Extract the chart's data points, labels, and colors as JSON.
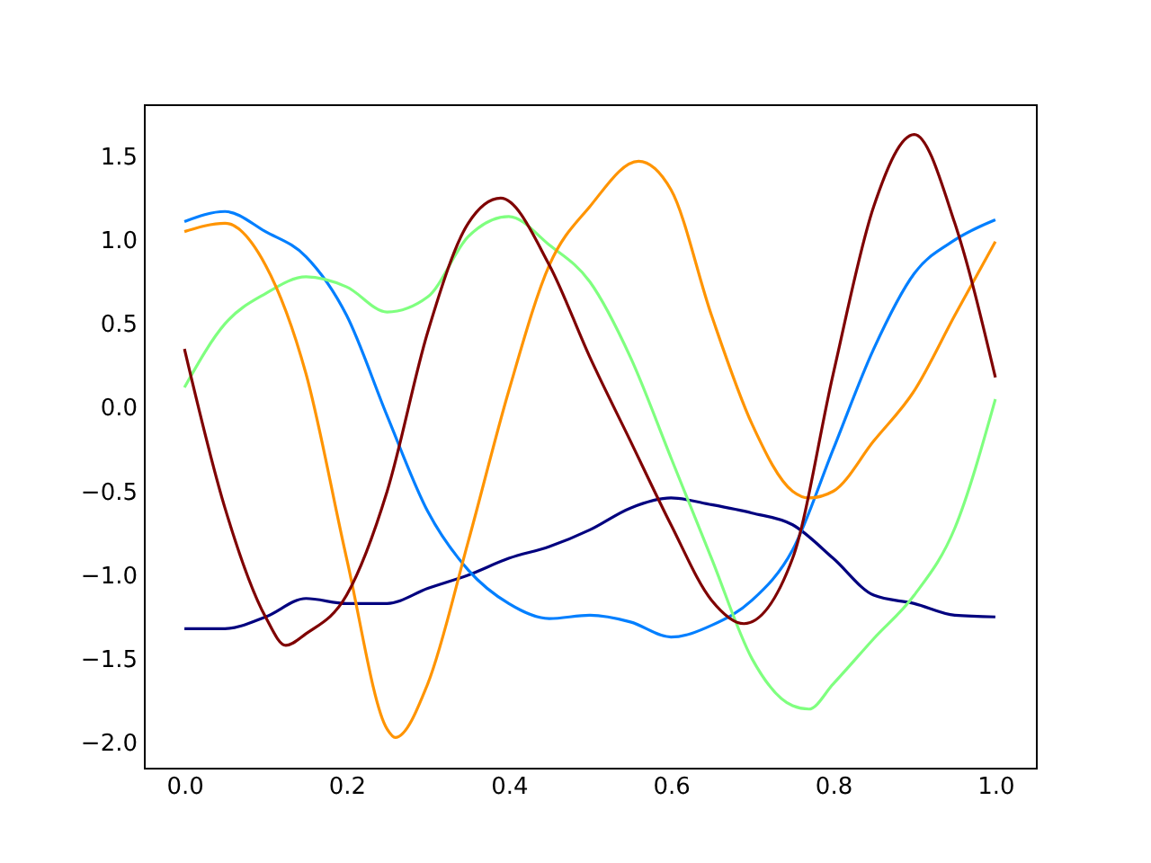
{
  "chart_data": {
    "type": "line",
    "xlim": [
      -0.05,
      1.05
    ],
    "ylim": [
      -2.15,
      1.81
    ],
    "grid": false,
    "xticks": [
      {
        "value": 0,
        "label": "0.0"
      },
      {
        "value": 0.2,
        "label": "0.2"
      },
      {
        "value": 0.4,
        "label": "0.4"
      },
      {
        "value": 0.6,
        "label": "0.6"
      },
      {
        "value": 0.8,
        "label": "0.8"
      },
      {
        "value": 1,
        "label": "1.0"
      }
    ],
    "yticks": [
      {
        "value": -2,
        "label": "−2.0"
      },
      {
        "value": -1.5,
        "label": "−1.5"
      },
      {
        "value": -1,
        "label": "−1.0"
      },
      {
        "value": -0.5,
        "label": "−0.5"
      },
      {
        "value": 0,
        "label": "0.0"
      },
      {
        "value": 0.5,
        "label": "0.5"
      },
      {
        "value": 1,
        "label": "1.0"
      },
      {
        "value": 1.5,
        "label": "1.5"
      }
    ],
    "series": [
      {
        "color": "#00007f",
        "x": [
          0,
          0.05,
          0.1,
          0.15,
          0.2,
          0.25,
          0.3,
          0.35,
          0.4,
          0.45,
          0.5,
          0.55,
          0.6,
          0.65,
          0.7,
          0.75,
          0.8,
          0.85,
          0.9,
          0.95,
          1.0
        ],
        "values": [
          -1.32,
          -1.32,
          -1.25,
          -1.14,
          -1.17,
          -1.17,
          -1.08,
          -1.0,
          -0.9,
          -0.83,
          -0.73,
          -0.6,
          -0.54,
          -0.58,
          -0.63,
          -0.7,
          -0.9,
          -1.12,
          -1.17,
          -1.24,
          -1.25
        ]
      },
      {
        "color": "#007fff",
        "x": [
          0,
          0.05,
          0.1,
          0.15,
          0.2,
          0.25,
          0.3,
          0.35,
          0.4,
          0.45,
          0.5,
          0.55,
          0.6,
          0.65,
          0.7,
          0.75,
          0.8,
          0.85,
          0.9,
          0.95,
          1.0
        ],
        "values": [
          1.11,
          1.17,
          1.05,
          0.9,
          0.55,
          -0.05,
          -0.62,
          -0.97,
          -1.17,
          -1.26,
          -1.24,
          -1.28,
          -1.37,
          -1.3,
          -1.15,
          -0.85,
          -0.25,
          0.35,
          0.8,
          1.0,
          1.12
        ]
      },
      {
        "color": "#7fff7f",
        "x": [
          0,
          0.05,
          0.1,
          0.15,
          0.2,
          0.25,
          0.3,
          0.35,
          0.4,
          0.45,
          0.5,
          0.55,
          0.6,
          0.65,
          0.7,
          0.75,
          0.77,
          0.8,
          0.85,
          0.9,
          0.95,
          1.0
        ],
        "values": [
          0.12,
          0.5,
          0.68,
          0.78,
          0.72,
          0.57,
          0.66,
          1.02,
          1.14,
          0.97,
          0.75,
          0.3,
          -0.3,
          -0.9,
          -1.5,
          -1.78,
          -1.8,
          -1.65,
          -1.38,
          -1.12,
          -0.72,
          0.05
        ]
      },
      {
        "color": "#ff9400",
        "x": [
          0,
          0.05,
          0.1,
          0.15,
          0.2,
          0.25,
          0.26,
          0.3,
          0.35,
          0.4,
          0.45,
          0.5,
          0.56,
          0.6,
          0.65,
          0.7,
          0.75,
          0.77,
          0.8,
          0.85,
          0.9,
          0.95,
          1.0
        ],
        "values": [
          1.05,
          1.1,
          0.85,
          0.2,
          -0.9,
          -1.92,
          -1.97,
          -1.65,
          -0.8,
          0.1,
          0.85,
          1.2,
          1.47,
          1.3,
          0.55,
          -0.1,
          -0.5,
          -0.54,
          -0.5,
          -0.2,
          0.1,
          0.55,
          0.99
        ]
      },
      {
        "color": "#7f0000",
        "x": [
          0,
          0.05,
          0.1,
          0.125,
          0.15,
          0.2,
          0.25,
          0.3,
          0.35,
          0.39,
          0.45,
          0.5,
          0.55,
          0.6,
          0.65,
          0.69,
          0.75,
          0.8,
          0.85,
          0.9,
          0.95,
          1.0
        ],
        "values": [
          0.35,
          -0.6,
          -1.25,
          -1.42,
          -1.35,
          -1.12,
          -0.5,
          0.45,
          1.1,
          1.25,
          0.85,
          0.3,
          -0.2,
          -0.7,
          -1.15,
          -1.29,
          -0.9,
          0.2,
          1.2,
          1.63,
          1.1,
          0.18
        ]
      }
    ]
  }
}
